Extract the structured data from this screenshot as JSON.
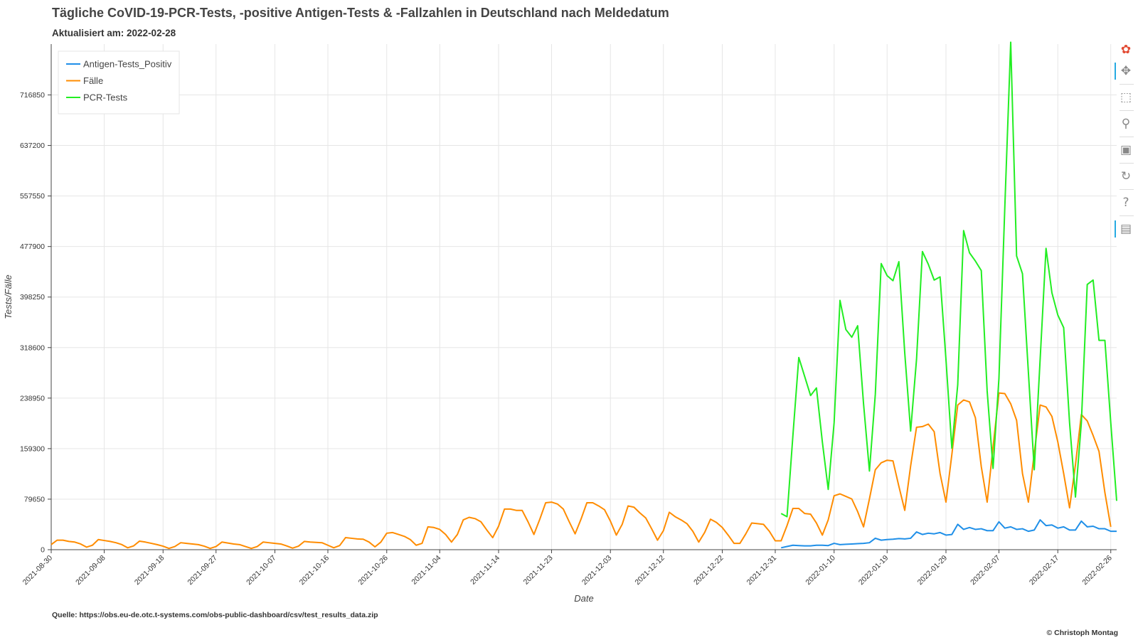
{
  "header": {
    "title": "Tägliche CoVID-19-PCR-Tests, -positive Antigen-Tests & -Fallzahlen in Deutschland nach Meldedatum",
    "subtitle": "Aktualisiert am: 2022-02-28"
  },
  "footer": {
    "source": "Quelle: https://obs.eu-de.otc.t-systems.com/obs-public-dashboard/csv/test_results_data.zip",
    "copyright": "© Christoph Montag"
  },
  "toolbar": {
    "tools": [
      {
        "name": "bokeh-logo-icon",
        "glyph": "✿",
        "color": "#e24a33",
        "active": false
      },
      {
        "name": "pan-icon",
        "glyph": "✥",
        "color": "#888",
        "active": true
      },
      {
        "name": "box-zoom-icon",
        "glyph": "⬚",
        "color": "#888",
        "active": false
      },
      {
        "name": "wheel-zoom-icon",
        "glyph": "⚲",
        "color": "#888",
        "active": false
      },
      {
        "name": "save-icon",
        "glyph": "▣",
        "color": "#888",
        "active": false
      },
      {
        "name": "reset-icon",
        "glyph": "↻",
        "color": "#888",
        "active": false
      },
      {
        "name": "help-icon",
        "glyph": "?",
        "color": "#888",
        "active": false
      },
      {
        "name": "hover-icon",
        "glyph": "▤",
        "color": "#888",
        "active": true
      }
    ]
  },
  "chart_data": {
    "type": "line",
    "xlabel": "Date",
    "ylabel": "Tests/Fälle",
    "x_start": "2021-08-30",
    "x_ticks": [
      "2021-08-30",
      "2021-09-08",
      "2021-09-18",
      "2021-09-27",
      "2021-10-07",
      "2021-10-16",
      "2021-10-26",
      "2021-11-04",
      "2021-11-14",
      "2021-11-23",
      "2021-12-03",
      "2021-12-12",
      "2021-12-22",
      "2021-12-31",
      "2022-01-10",
      "2022-01-19",
      "2022-01-29",
      "2022-02-07",
      "2022-02-17",
      "2022-02-26"
    ],
    "y_ticks": [
      0,
      79650,
      159300,
      238950,
      318600,
      398250,
      477900,
      557550,
      637200,
      716850
    ],
    "x_range": [
      "2021-08-30",
      "2022-02-27"
    ],
    "ylim": [
      0,
      797000
    ],
    "grid": true,
    "legend_position": "top-left",
    "series": [
      {
        "name": "Antigen-Tests_Positiv",
        "color": "#1f8fe8",
        "start": "2022-01-01",
        "values": [
          3000,
          5000,
          7000,
          6500,
          6000,
          6000,
          7000,
          7000,
          6500,
          10000,
          8000,
          8500,
          9000,
          9500,
          10000,
          11000,
          18000,
          15000,
          16000,
          16500,
          17500,
          17000,
          18000,
          28000,
          24000,
          26000,
          25000,
          27000,
          23000,
          24000,
          40000,
          32000,
          35000,
          32000,
          33000,
          30000,
          30000,
          44000,
          34000,
          36000,
          32000,
          33000,
          29000,
          31000,
          47000,
          38000,
          39000,
          34000,
          36000,
          31000,
          31000,
          45000,
          36000,
          37000,
          33000,
          33000,
          29000,
          29000
        ]
      },
      {
        "name": "Fälle",
        "color": "#ff8c00",
        "start": "2021-08-30",
        "values": [
          8000,
          15000,
          15000,
          13000,
          12000,
          9000,
          4000,
          7000,
          16000,
          14500,
          13000,
          11000,
          8000,
          3000,
          6000,
          13500,
          12000,
          10000,
          8000,
          5500,
          2000,
          5000,
          11000,
          10000,
          9000,
          8000,
          5500,
          2000,
          5000,
          12000,
          10500,
          9000,
          8000,
          5000,
          2000,
          5000,
          12000,
          11000,
          10000,
          9000,
          6000,
          2500,
          5500,
          13000,
          12000,
          11500,
          11000,
          7000,
          3000,
          6500,
          19000,
          18000,
          17000,
          16500,
          12000,
          4500,
          12000,
          26000,
          27000,
          24000,
          21000,
          16000,
          7000,
          10000,
          36000,
          35000,
          32000,
          24000,
          12000,
          24000,
          47000,
          51000,
          49000,
          44000,
          31000,
          19000,
          37000,
          64000,
          64000,
          62000,
          62000,
          44000,
          24000,
          48000,
          74000,
          75000,
          72000,
          64000,
          44000,
          25000,
          48000,
          74000,
          74000,
          69000,
          63000,
          45000,
          23000,
          40000,
          69000,
          67000,
          58000,
          50000,
          33000,
          15000,
          30000,
          59000,
          52000,
          47000,
          41000,
          29000,
          12000,
          27000,
          48000,
          43000,
          35000,
          23000,
          10000,
          10000,
          25000,
          42000,
          41000,
          40000,
          29000,
          14000,
          14000,
          38000,
          65000,
          65000,
          57000,
          56000,
          42000,
          23000,
          47000,
          85000,
          88000,
          84000,
          80000,
          60000,
          36000,
          80000,
          126000,
          137000,
          141000,
          140000,
          100000,
          62000,
          132000,
          193000,
          194000,
          198000,
          186000,
          120000,
          75000,
          150000,
          228000,
          236000,
          233000,
          208000,
          131000,
          75000,
          162000,
          247000,
          246000,
          230000,
          204000,
          120000,
          75000,
          152000,
          228000,
          225000,
          210000,
          170000,
          120000,
          66000,
          134000,
          213000,
          203000,
          180000,
          155000,
          90000,
          36000
        ]
      },
      {
        "name": "PCR-Tests",
        "color": "#22ee22",
        "start": "2022-01-01",
        "values": [
          57000,
          52000,
          180000,
          303000,
          273000,
          243000,
          255000,
          170000,
          95000,
          200000,
          393000,
          347000,
          335000,
          353000,
          230000,
          124000,
          245000,
          451000,
          432000,
          424000,
          454000,
          310000,
          187000,
          300000,
          470000,
          450000,
          425000,
          430000,
          300000,
          160000,
          260000,
          503000,
          468000,
          455000,
          440000,
          250000,
          128000,
          270000,
          540000,
          800000,
          463000,
          435000,
          280000,
          126000,
          300000,
          475000,
          405000,
          370000,
          350000,
          200000,
          83000,
          200000,
          418000,
          425000,
          330000,
          330000,
          200000,
          77000
        ]
      }
    ]
  }
}
